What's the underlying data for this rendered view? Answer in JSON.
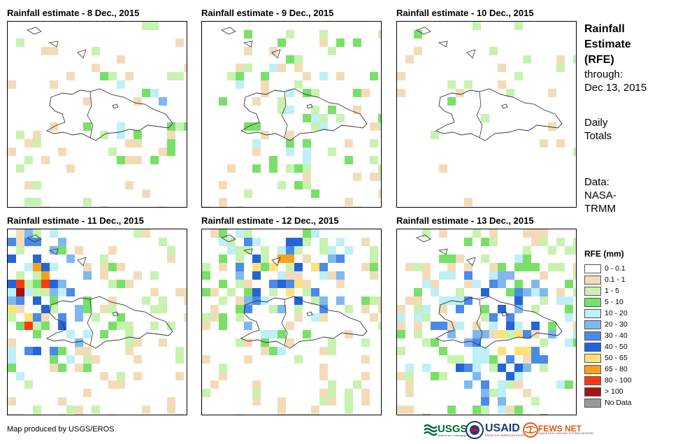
{
  "panels": [
    {
      "title": "Rainfall estimate - 8 Dec., 2015",
      "seed": 8
    },
    {
      "title": "Rainfall estimate - 9 Dec., 2015",
      "seed": 9
    },
    {
      "title": "Rainfall estimate - 10 Dec., 2015",
      "seed": 10
    },
    {
      "title": "Rainfall estimate - 11 Dec., 2015",
      "seed": 11
    },
    {
      "title": "Rainfall estimate - 12 Dec., 2015",
      "seed": 12
    },
    {
      "title": "Rainfall estimate - 13 Dec., 2015",
      "seed": 13
    }
  ],
  "side": {
    "title_line1": "Rainfall",
    "title_line2": "Estimate",
    "title_line3": "(RFE)",
    "through_label": "through:",
    "through_date": "Dec 13, 2015",
    "daily_line1": "Daily",
    "daily_line2": "Totals",
    "data_line1": "Data:",
    "data_line2": "NASA-",
    "data_line3": "TRMM"
  },
  "legend": {
    "title": "RFE (mm)",
    "items": [
      {
        "label": "0 - 0.1",
        "color": "#ffffff"
      },
      {
        "label": "0.1 - 1",
        "color": "#f2dcb8"
      },
      {
        "label": "1 - 5",
        "color": "#c7f2b0"
      },
      {
        "label": "5 - 10",
        "color": "#78e068"
      },
      {
        "label": "10 - 20",
        "color": "#bfeff7"
      },
      {
        "label": "20 - 30",
        "color": "#7fb8f0"
      },
      {
        "label": "30 - 40",
        "color": "#4a8ae8"
      },
      {
        "label": "40 - 50",
        "color": "#2464d8"
      },
      {
        "label": "50 - 65",
        "color": "#ffe27a"
      },
      {
        "label": "65 - 80",
        "color": "#f5a21a"
      },
      {
        "label": "80 - 100",
        "color": "#ff3a10"
      },
      {
        "label": "> 100",
        "color": "#a41414"
      },
      {
        "label": "No Data",
        "color": "#999999"
      }
    ]
  },
  "credit": "Map produced by USGS/EROS",
  "logos": {
    "usgs": "USGS",
    "usgs_tagline": "science for a changing world",
    "usaid": "USAID",
    "usaid_tagline": "FROM THE AMERICAN PEOPLE",
    "fewsnet": "FEWS NET",
    "fewsnet_tagline": "FAMINE EARLY WARNING SYSTEMS NETWORK"
  }
}
